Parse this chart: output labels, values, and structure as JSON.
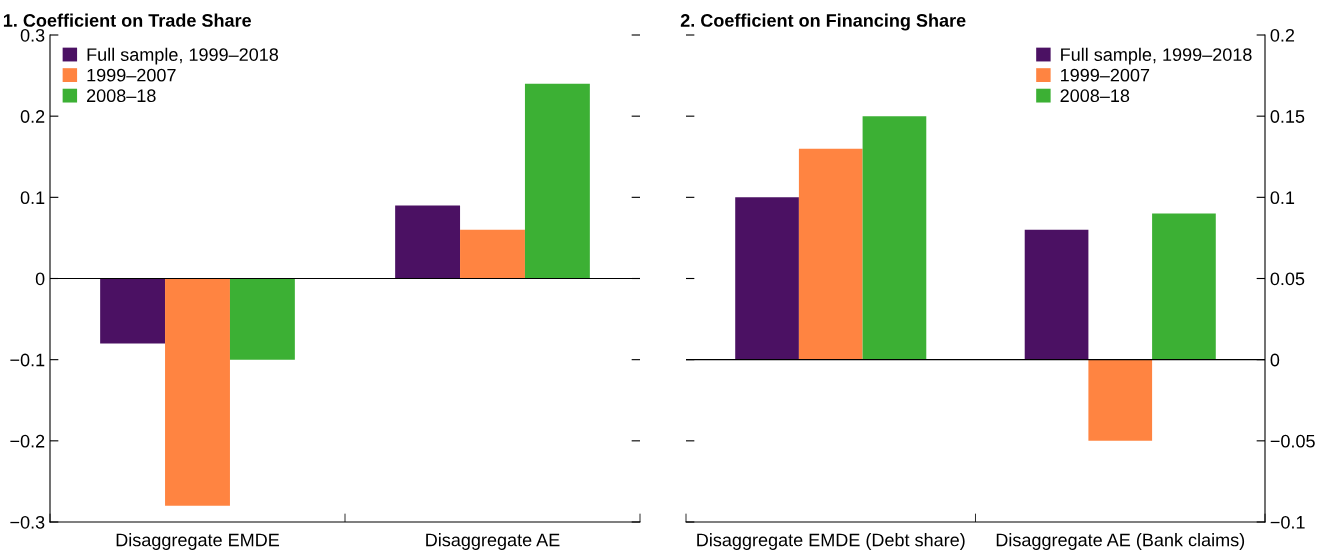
{
  "chart_data": [
    {
      "type": "bar",
      "title": "1. Coefficient on Trade Share",
      "categories": [
        "Disaggregate EMDE",
        "Disaggregate AE"
      ],
      "series": [
        {
          "name": "Full sample, 1999–2018",
          "color": "#4b1163",
          "values": [
            -0.08,
            0.09
          ]
        },
        {
          "name": "1999–2007",
          "color": "#ff8441",
          "values": [
            -0.28,
            0.06
          ]
        },
        {
          "name": "2008–18",
          "color": "#3cb034",
          "values": [
            -0.1,
            0.24
          ]
        }
      ],
      "ylim": [
        -0.3,
        0.3
      ],
      "yticks": [
        {
          "value": -0.3,
          "label": "−0.3"
        },
        {
          "value": -0.2,
          "label": "−0.2"
        },
        {
          "value": -0.1,
          "label": "−0.1"
        },
        0,
        0.1,
        0.2,
        0.3
      ],
      "legend": "top left"
    },
    {
      "type": "bar",
      "title": "2. Coefficient on Financing Share",
      "categories": [
        "Disaggregate EMDE (Debt share)",
        "Disaggregate AE (Bank claims)"
      ],
      "series": [
        {
          "name": "Full sample, 1999–2018",
          "color": "#4b1163",
          "values": [
            0.1,
            0.08
          ],
          "axis": "y2"
        },
        {
          "name": "1999–2007",
          "color": "#ff8441",
          "values": [
            0.13,
            -0.05
          ],
          "axis": "y2"
        },
        {
          "name": "2008–18",
          "color": "#3cb034",
          "values": [
            0.15,
            0.09
          ],
          "axis": "y2"
        }
      ],
      "y2lim": [
        -0.1,
        0.2
      ],
      "y2ticks": [
        {
          "value": -0.1,
          "label": "−0.1"
        },
        {
          "value": -0.05,
          "label": "−0.05"
        },
        0,
        0.05,
        0.1,
        0.15,
        0.2
      ],
      "legend": "top right"
    }
  ]
}
